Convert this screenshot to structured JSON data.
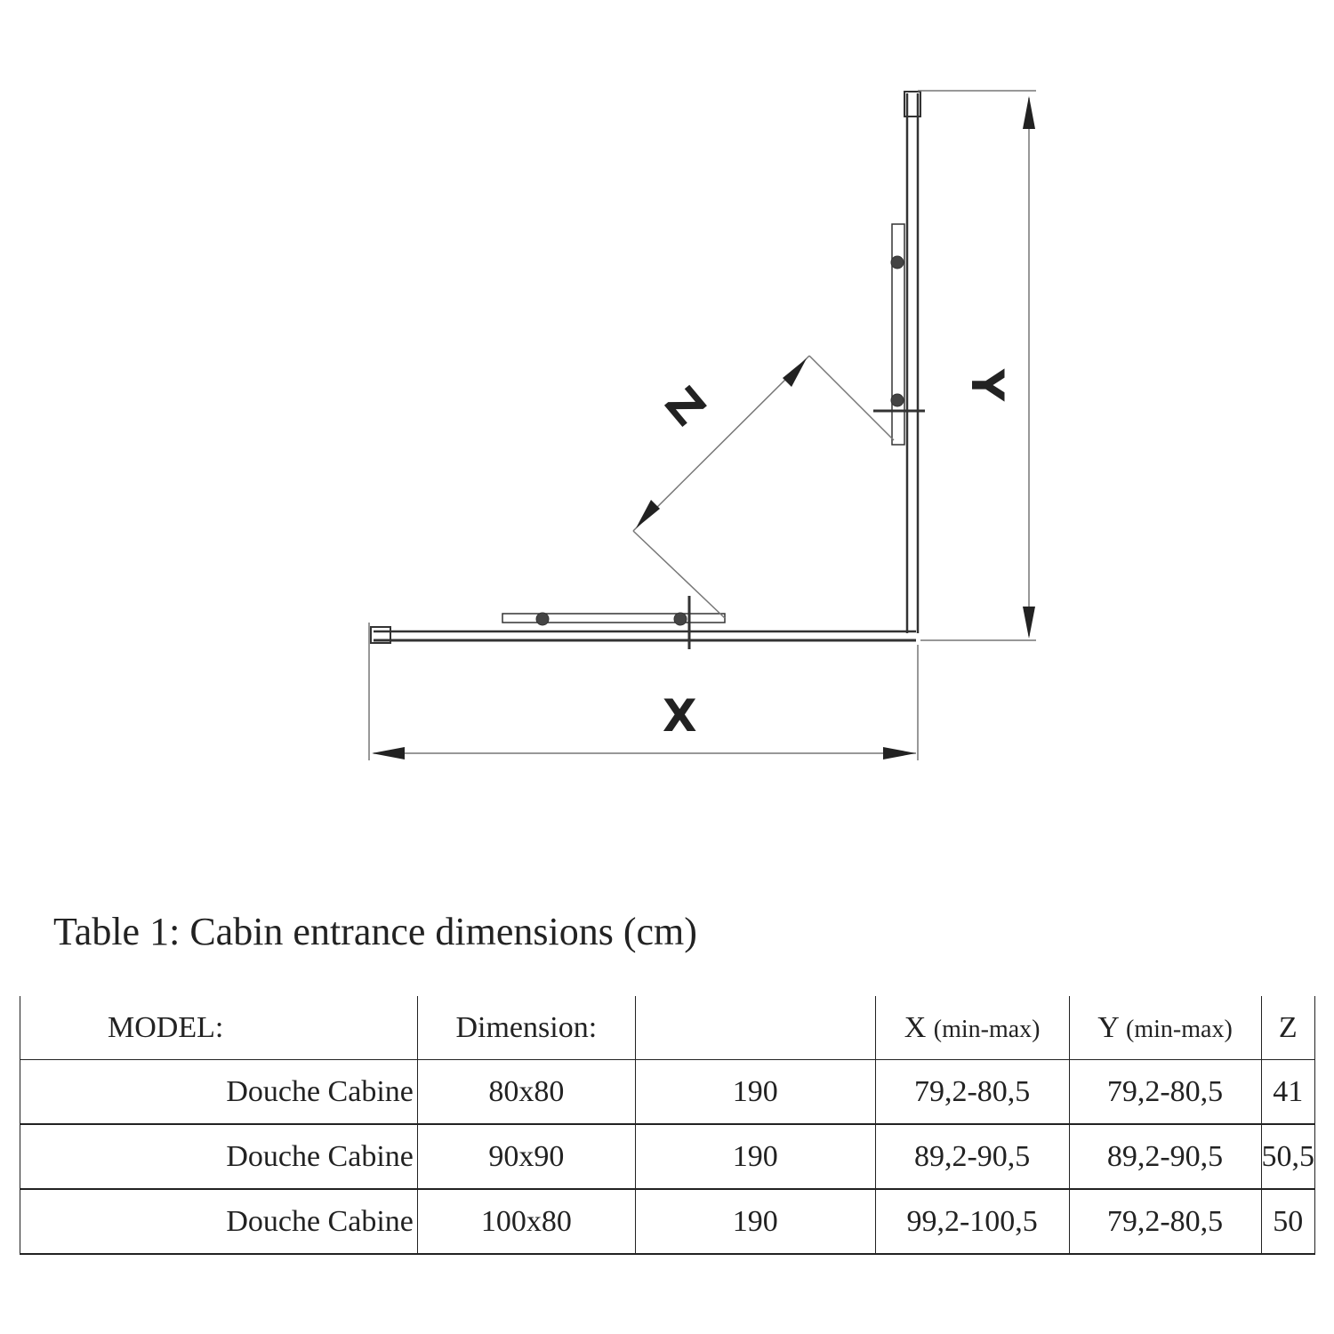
{
  "diagram": {
    "labels": {
      "x": "X",
      "y": "Y",
      "z": "Z"
    }
  },
  "caption": "Table 1: Cabin entrance dimensions (cm)",
  "table": {
    "headers": [
      {
        "main": "MODEL:",
        "sub": ""
      },
      {
        "main": "Dimension:",
        "sub": ""
      },
      {
        "main": "",
        "sub": ""
      },
      {
        "main": "X",
        "sub": "(min-max)"
      },
      {
        "main": "Y",
        "sub": "(min-max)"
      },
      {
        "main": "Z",
        "sub": ""
      }
    ],
    "rows": [
      [
        "Douche Cabine",
        "80x80",
        "190",
        "79,2-80,5",
        "79,2-80,5",
        "41"
      ],
      [
        "Douche Cabine",
        "90x90",
        "190",
        "89,2-90,5",
        "89,2-90,5",
        "50,5"
      ],
      [
        "Douche Cabine",
        "100x80",
        "190",
        "99,2-100,5",
        "79,2-80,5",
        "50"
      ]
    ]
  }
}
